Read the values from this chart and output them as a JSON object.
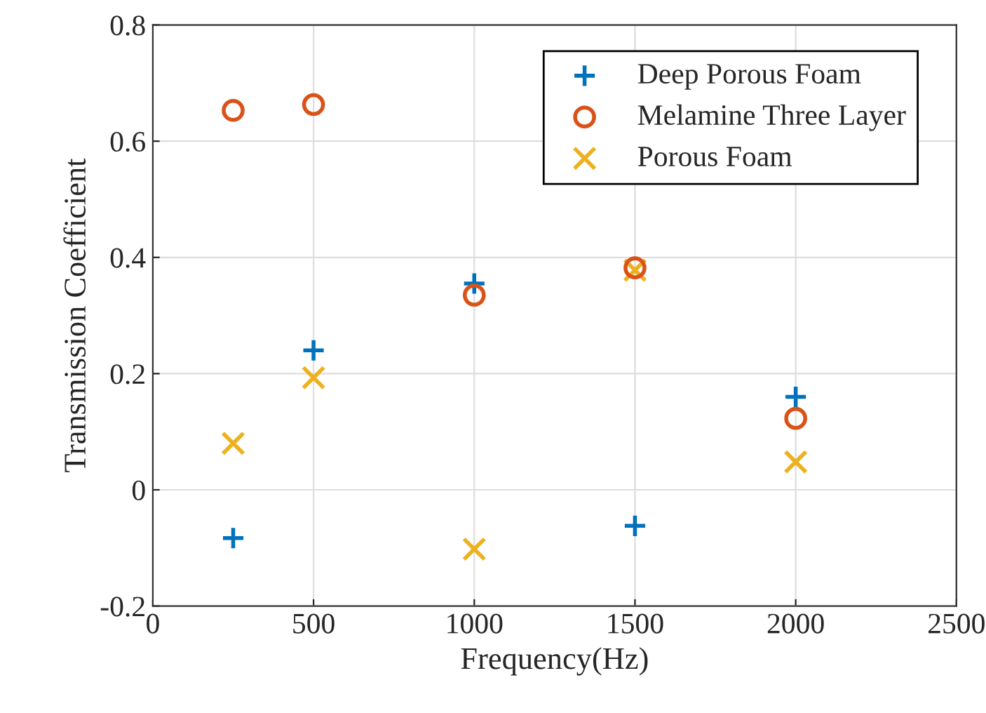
{
  "chart_data": {
    "type": "scatter",
    "xlabel": "Frequency(Hz)",
    "ylabel": "Transmission Coefficient",
    "x": [
      250,
      500,
      1000,
      1500,
      2000
    ],
    "series": [
      {
        "name": "Deep Porous Foam",
        "color": "#0072bd",
        "marker": "plus",
        "values": [
          -0.083,
          0.24,
          0.355,
          -0.062,
          0.16
        ]
      },
      {
        "name": "Melamine Three Layer",
        "color": "#d95319",
        "marker": "circle",
        "values": [
          0.653,
          0.663,
          0.335,
          0.382,
          0.123
        ]
      },
      {
        "name": "Porous Foam",
        "color": "#edb120",
        "marker": "cross",
        "values": [
          0.08,
          0.193,
          -0.102,
          0.378,
          0.048
        ]
      }
    ],
    "xlim": [
      0,
      2500
    ],
    "xticks": [
      0,
      500,
      1000,
      1500,
      2000,
      2500
    ],
    "ylim": [
      -0.2,
      0.8
    ],
    "yticks": [
      -0.2,
      0,
      0.2,
      0.4,
      0.6,
      0.8
    ],
    "grid": true,
    "legend": "top right"
  }
}
